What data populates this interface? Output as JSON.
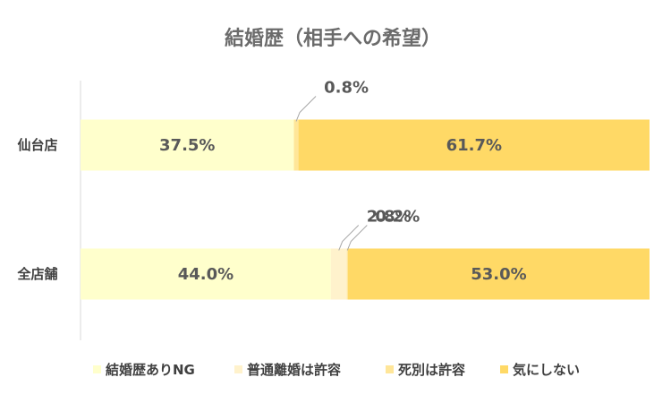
{
  "chart_data": {
    "type": "bar",
    "orientation": "horizontal",
    "stacked": "percent",
    "title": "結婚歴（相手への希望）",
    "categories": [
      "仙台店",
      "全店舗"
    ],
    "series": [
      {
        "name": "結婚歴ありNG",
        "color": "#ffffcc",
        "values": [
          37.5,
          44.0
        ],
        "labels": [
          "37.5%",
          "44.0%"
        ]
      },
      {
        "name": "普通離婚は許容",
        "color": "#fff2cc",
        "values": [
          0.0,
          2.8
        ],
        "labels": [
          "",
          "2.8%"
        ]
      },
      {
        "name": "死別は許容",
        "color": "#ffe699",
        "values": [
          0.8,
          0.2
        ],
        "labels": [
          "0.8%",
          "0.2%"
        ]
      },
      {
        "name": "気にしない",
        "color": "#ffd966",
        "values": [
          61.7,
          53.0
        ],
        "labels": [
          "61.7%",
          "53.0%"
        ]
      }
    ],
    "xlim": [
      0,
      100
    ],
    "grid": false,
    "legend_position": "bottom"
  }
}
